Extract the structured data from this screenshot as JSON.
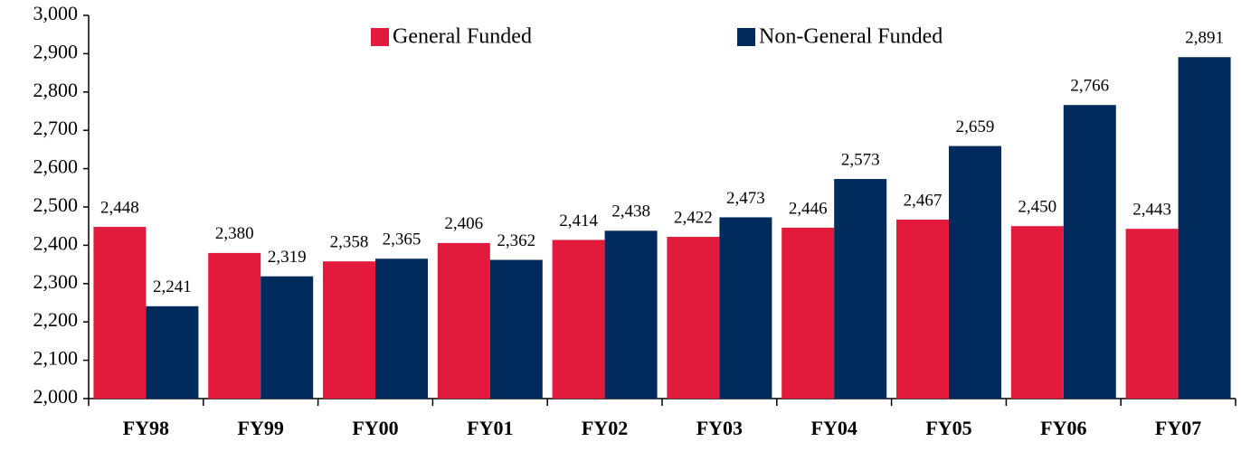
{
  "chart_data": {
    "type": "bar",
    "categories": [
      "FY98",
      "FY99",
      "FY00",
      "FY01",
      "FY02",
      "FY03",
      "FY04",
      "FY05",
      "FY06",
      "FY07"
    ],
    "series": [
      {
        "name": "General Funded",
        "color": "#e21a3c",
        "values": [
          2448,
          2380,
          2358,
          2406,
          2414,
          2422,
          2446,
          2467,
          2450,
          2443
        ],
        "value_labels": [
          "2,448",
          "2,380",
          "2,358",
          "2,406",
          "2,414",
          "2,422",
          "2,446",
          "2,467",
          "2,450",
          "2,443"
        ]
      },
      {
        "name": "Non-General Funded",
        "color": "#022b5d",
        "values": [
          2241,
          2319,
          2365,
          2362,
          2438,
          2473,
          2573,
          2659,
          2766,
          2891
        ],
        "value_labels": [
          "2,241",
          "2,319",
          "2,365",
          "2,362",
          "2,438",
          "2,473",
          "2,573",
          "2,659",
          "2,766",
          "2,891"
        ]
      }
    ],
    "ylim": [
      2000,
      3000
    ],
    "yticks": [
      {
        "value": 2000,
        "label": "2,000"
      },
      {
        "value": 2100,
        "label": "2,100"
      },
      {
        "value": 2200,
        "label": "2,200"
      },
      {
        "value": 2300,
        "label": "2,300"
      },
      {
        "value": 2400,
        "label": "2,400"
      },
      {
        "value": 2500,
        "label": "2,500"
      },
      {
        "value": 2600,
        "label": "2,600"
      },
      {
        "value": 2700,
        "label": "2,700"
      },
      {
        "value": 2800,
        "label": "2,800"
      },
      {
        "value": 2900,
        "label": "2,900"
      },
      {
        "value": 3000,
        "label": "3,000"
      }
    ],
    "grid": false,
    "legend": "top"
  }
}
